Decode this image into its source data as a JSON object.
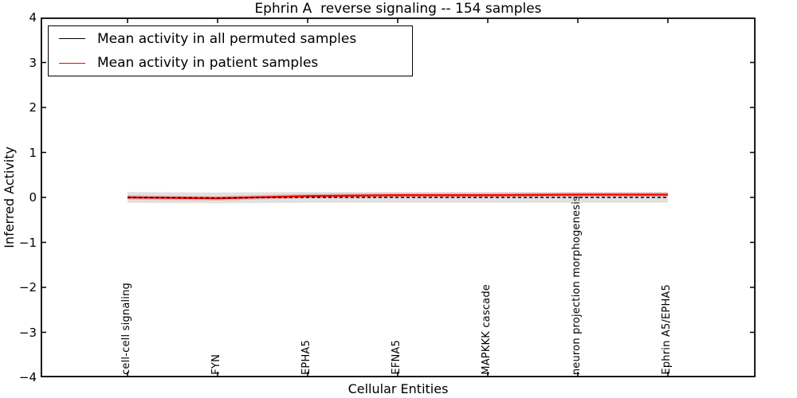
{
  "chart_data": {
    "type": "line",
    "title": "Ephrin A  reverse signaling -- 154 samples",
    "xlabel": "Cellular Entities",
    "ylabel": "Inferred Activity",
    "ylim": [
      -4,
      4
    ],
    "yticks": [
      4,
      3,
      2,
      1,
      0,
      -1,
      -2,
      -3,
      -4
    ],
    "ytick_labels": [
      "4",
      "3",
      "2",
      "1",
      "0",
      "−1",
      "−2",
      "−3",
      "−4"
    ],
    "categories": [
      "cell-cell signaling",
      "FYN",
      "EPHA5",
      "EFNA5",
      "MAPKKK cascade",
      "neuron projection morphogenesis",
      "Ephrin A5/EPHA5"
    ],
    "series": [
      {
        "name": "Mean activity in all permuted samples",
        "color": "#000000",
        "style": "dashed",
        "values": [
          0.0,
          -0.01,
          0.0,
          0.0,
          0.0,
          0.0,
          0.0
        ],
        "band_halfwidth": 0.12,
        "band_color": "#aaaaaa",
        "band_opacity": 0.35
      },
      {
        "name": "Mean activity in patient samples",
        "color": "#ff0000",
        "style": "solid",
        "values": [
          0.0,
          -0.02,
          0.03,
          0.05,
          0.05,
          0.06,
          0.06
        ],
        "band_halfwidth": 0.05,
        "band_color": "#ff0000",
        "band_opacity": 0.18
      }
    ],
    "legend_position": "upper left",
    "grid": false,
    "axis_color": "#000000",
    "background_color": "#ffffff"
  }
}
